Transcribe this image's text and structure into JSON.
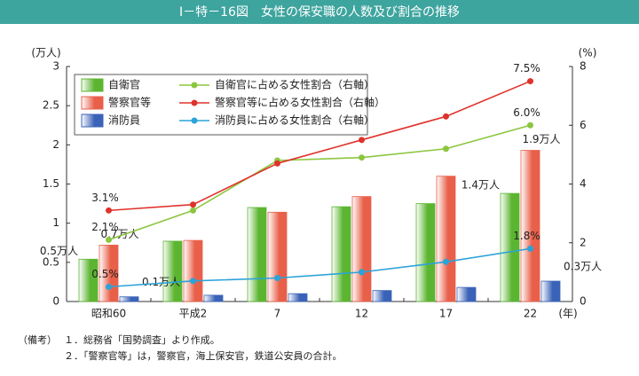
{
  "chart_data": {
    "type": "bar",
    "title": "Ⅰ－特－16図　女性の保安職の人数及び割合の推移",
    "y_label": "(万人)",
    "y2_label": "(%)",
    "x_label": "(年)",
    "categories": [
      "昭和60",
      "平成2",
      "7",
      "12",
      "17",
      "22"
    ],
    "ylim": [
      0,
      3
    ],
    "yticks": [
      0,
      0.5,
      1,
      1.5,
      2,
      2.5,
      3
    ],
    "y2lim": [
      0,
      8
    ],
    "y2ticks": [
      0,
      2,
      4,
      6,
      8
    ],
    "series": [
      {
        "name": "自衛官",
        "type": "bar",
        "color": "#5cb531",
        "values": [
          0.54,
          0.77,
          1.2,
          1.21,
          1.25,
          1.38
        ],
        "value_labels": [
          "0.5万人",
          null,
          null,
          null,
          null,
          "1.4万人"
        ]
      },
      {
        "name": "警察官等",
        "type": "bar",
        "color": "#e8604a",
        "values": [
          0.72,
          0.78,
          1.14,
          1.34,
          1.6,
          1.93
        ],
        "value_labels": [
          "0.7万人",
          null,
          null,
          null,
          null,
          "1.9万人"
        ]
      },
      {
        "name": "消防員",
        "type": "bar",
        "color": "#3a62b8",
        "values": [
          0.06,
          0.08,
          0.1,
          0.14,
          0.18,
          0.26
        ],
        "value_labels": [
          "0.1万人",
          null,
          null,
          null,
          null,
          "0.3万人"
        ]
      },
      {
        "name": "自衛官に占める女性割合（右軸）",
        "type": "line",
        "axis": "y2",
        "color": "#8cc63f",
        "values": [
          2.1,
          3.1,
          4.8,
          4.9,
          5.2,
          6.0
        ],
        "value_labels": [
          "2.1%",
          null,
          null,
          null,
          null,
          "6.0%"
        ]
      },
      {
        "name": "警察官等に占める女性割合（右軸）",
        "type": "line",
        "axis": "y2",
        "color": "#e0322c",
        "values": [
          3.1,
          3.3,
          4.7,
          5.5,
          6.3,
          7.5
        ],
        "value_labels": [
          "3.1%",
          null,
          null,
          null,
          null,
          "7.5%"
        ]
      },
      {
        "name": "消防員に占める女性割合（右軸）",
        "type": "line",
        "axis": "y2",
        "color": "#2aa3d8",
        "values": [
          0.5,
          0.7,
          0.8,
          1.0,
          1.35,
          1.8
        ],
        "value_labels": [
          "0.5%",
          null,
          null,
          null,
          null,
          "1.8%"
        ]
      }
    ],
    "legend": "upper left",
    "notes": {
      "label": "（備考）",
      "items": [
        "１．総務省「国勢調査」より作成。",
        "２．「警察官等」は，警察官，海上保安官，鉄道公安員の合計。"
      ]
    }
  }
}
